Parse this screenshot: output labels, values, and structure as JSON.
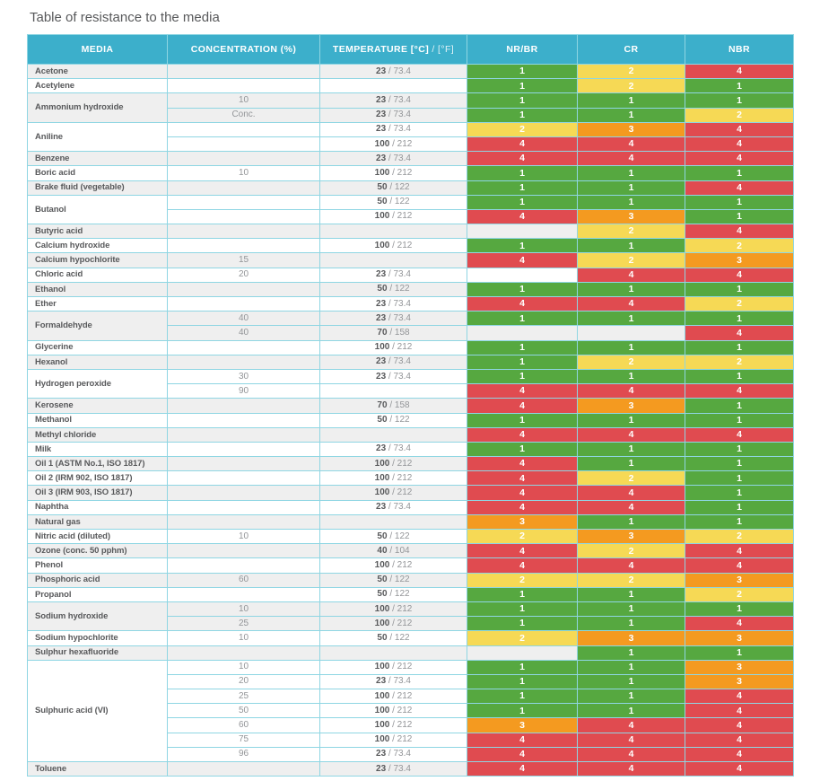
{
  "title": "Table of resistance to the media",
  "colors": {
    "header_teal": "#3cafcb",
    "border_teal": "#8fd6e3",
    "stripe_gray": "#efefef",
    "rating_1_green": "#56a840",
    "rating_2_yellow": "#f6d955",
    "rating_3_orange": "#f49a20",
    "rating_4_red": "#e04b50",
    "text_dark": "#58595b",
    "text_gray": "#939598"
  },
  "table": {
    "columns": {
      "media": "MEDIA",
      "concentration": "CONCENTRATION (%)",
      "temperature_bold": "TEMPERATURE [°C]",
      "temperature_light": " / [°F]",
      "nr_br": "NR/BR",
      "cr": "CR",
      "nbr": "NBR"
    },
    "rating_columns": [
      "nrbr",
      "cr",
      "nbr"
    ],
    "groups": [
      {
        "media": "Acetone",
        "rows": [
          {
            "concentration": "",
            "temp_c": "23",
            "temp_f": "73.4",
            "ratings": [
              1,
              2,
              4
            ]
          }
        ]
      },
      {
        "media": "Acetylene",
        "rows": [
          {
            "concentration": "",
            "temp_c": "",
            "temp_f": "",
            "ratings": [
              1,
              2,
              1
            ]
          }
        ]
      },
      {
        "media": "Ammonium hydroxide",
        "rows": [
          {
            "concentration": "10",
            "temp_c": "23",
            "temp_f": "73.4",
            "ratings": [
              1,
              1,
              1
            ]
          },
          {
            "concentration": "Conc.",
            "temp_c": "23",
            "temp_f": "73.4",
            "ratings": [
              1,
              1,
              2
            ]
          }
        ]
      },
      {
        "media": "Aniline",
        "rows": [
          {
            "concentration": "",
            "temp_c": "23",
            "temp_f": "73.4",
            "ratings": [
              2,
              3,
              4
            ]
          },
          {
            "concentration": "",
            "temp_c": "100",
            "temp_f": "212",
            "ratings": [
              4,
              4,
              4
            ]
          }
        ]
      },
      {
        "media": "Benzene",
        "rows": [
          {
            "concentration": "",
            "temp_c": "23",
            "temp_f": "73.4",
            "ratings": [
              4,
              4,
              4
            ]
          }
        ]
      },
      {
        "media": "Boric acid",
        "rows": [
          {
            "concentration": "10",
            "temp_c": "100",
            "temp_f": "212",
            "ratings": [
              1,
              1,
              1
            ]
          }
        ]
      },
      {
        "media": "Brake fluid (vegetable)",
        "rows": [
          {
            "concentration": "",
            "temp_c": "50",
            "temp_f": "122",
            "ratings": [
              1,
              1,
              4
            ]
          }
        ]
      },
      {
        "media": "Butanol",
        "rows": [
          {
            "concentration": "",
            "temp_c": "50",
            "temp_f": "122",
            "ratings": [
              1,
              1,
              1
            ]
          },
          {
            "concentration": "",
            "temp_c": "100",
            "temp_f": "212",
            "ratings": [
              4,
              3,
              1
            ]
          }
        ]
      },
      {
        "media": "Butyric acid",
        "rows": [
          {
            "concentration": "",
            "temp_c": "",
            "temp_f": "",
            "ratings": [
              null,
              2,
              4
            ]
          }
        ]
      },
      {
        "media": "Calcium hydroxide",
        "rows": [
          {
            "concentration": "",
            "temp_c": "100",
            "temp_f": "212",
            "ratings": [
              1,
              1,
              2
            ]
          }
        ]
      },
      {
        "media": "Calcium hypochlorite",
        "rows": [
          {
            "concentration": "15",
            "temp_c": "",
            "temp_f": "",
            "ratings": [
              4,
              2,
              3
            ]
          }
        ]
      },
      {
        "media": "Chloric acid",
        "rows": [
          {
            "concentration": "20",
            "temp_c": "23",
            "temp_f": "73.4",
            "ratings": [
              null,
              4,
              4
            ]
          }
        ]
      },
      {
        "media": "Ethanol",
        "rows": [
          {
            "concentration": "",
            "temp_c": "50",
            "temp_f": "122",
            "ratings": [
              1,
              1,
              1
            ]
          }
        ]
      },
      {
        "media": "Ether",
        "rows": [
          {
            "concentration": "",
            "temp_c": "23",
            "temp_f": "73.4",
            "ratings": [
              4,
              4,
              2
            ]
          }
        ]
      },
      {
        "media": "Formaldehyde",
        "rows": [
          {
            "concentration": "40",
            "temp_c": "23",
            "temp_f": "73.4",
            "ratings": [
              1,
              1,
              1
            ]
          },
          {
            "concentration": "40",
            "temp_c": "70",
            "temp_f": "158",
            "ratings": [
              null,
              null,
              4
            ]
          }
        ]
      },
      {
        "media": "Glycerine",
        "rows": [
          {
            "concentration": "",
            "temp_c": "100",
            "temp_f": "212",
            "ratings": [
              1,
              1,
              1
            ]
          }
        ]
      },
      {
        "media": "Hexanol",
        "rows": [
          {
            "concentration": "",
            "temp_c": "23",
            "temp_f": "73.4",
            "ratings": [
              1,
              2,
              2
            ]
          }
        ]
      },
      {
        "media": "Hydrogen peroxide",
        "rows": [
          {
            "concentration": "30",
            "temp_c": "23",
            "temp_f": "73.4",
            "ratings": [
              1,
              1,
              1
            ]
          },
          {
            "concentration": "90",
            "temp_c": "",
            "temp_f": "",
            "ratings": [
              4,
              4,
              4
            ]
          }
        ]
      },
      {
        "media": "Kerosene",
        "rows": [
          {
            "concentration": "",
            "temp_c": "70",
            "temp_f": "158",
            "ratings": [
              4,
              3,
              1
            ]
          }
        ]
      },
      {
        "media": "Methanol",
        "rows": [
          {
            "concentration": "",
            "temp_c": "50",
            "temp_f": "122",
            "ratings": [
              1,
              1,
              1
            ]
          }
        ]
      },
      {
        "media": "Methyl chloride",
        "rows": [
          {
            "concentration": "",
            "temp_c": "",
            "temp_f": "",
            "ratings": [
              4,
              4,
              4
            ]
          }
        ]
      },
      {
        "media": "Milk",
        "rows": [
          {
            "concentration": "",
            "temp_c": "23",
            "temp_f": "73.4",
            "ratings": [
              1,
              1,
              1
            ]
          }
        ]
      },
      {
        "media": "Oil 1 (ASTM No.1, ISO 1817)",
        "rows": [
          {
            "concentration": "",
            "temp_c": "100",
            "temp_f": "212",
            "ratings": [
              4,
              1,
              1
            ]
          }
        ]
      },
      {
        "media": "Oil 2 (IRM 902, ISO 1817)",
        "rows": [
          {
            "concentration": "",
            "temp_c": "100",
            "temp_f": "212",
            "ratings": [
              4,
              2,
              1
            ]
          }
        ]
      },
      {
        "media": "Oil 3 (IRM 903, ISO 1817)",
        "rows": [
          {
            "concentration": "",
            "temp_c": "100",
            "temp_f": "212",
            "ratings": [
              4,
              4,
              1
            ]
          }
        ]
      },
      {
        "media": "Naphtha",
        "rows": [
          {
            "concentration": "",
            "temp_c": "23",
            "temp_f": "73.4",
            "ratings": [
              4,
              4,
              1
            ]
          }
        ]
      },
      {
        "media": "Natural gas",
        "rows": [
          {
            "concentration": "",
            "temp_c": "",
            "temp_f": "",
            "ratings": [
              3,
              1,
              1
            ]
          }
        ]
      },
      {
        "media": "Nitric acid (diluted)",
        "rows": [
          {
            "concentration": "10",
            "temp_c": "50",
            "temp_f": "122",
            "ratings": [
              2,
              3,
              2
            ]
          }
        ]
      },
      {
        "media": "Ozone (conc. 50 pphm)",
        "rows": [
          {
            "concentration": "",
            "temp_c": "40",
            "temp_f": "104",
            "ratings": [
              4,
              2,
              4
            ]
          }
        ]
      },
      {
        "media": "Phenol",
        "rows": [
          {
            "concentration": "",
            "temp_c": "100",
            "temp_f": "212",
            "ratings": [
              4,
              4,
              4
            ]
          }
        ]
      },
      {
        "media": "Phosphoric acid",
        "rows": [
          {
            "concentration": "60",
            "temp_c": "50",
            "temp_f": "122",
            "ratings": [
              2,
              2,
              3
            ]
          }
        ]
      },
      {
        "media": "Propanol",
        "rows": [
          {
            "concentration": "",
            "temp_c": "50",
            "temp_f": "122",
            "ratings": [
              1,
              1,
              2
            ]
          }
        ]
      },
      {
        "media": "Sodium hydroxide",
        "rows": [
          {
            "concentration": "10",
            "temp_c": "100",
            "temp_f": "212",
            "ratings": [
              1,
              1,
              1
            ]
          },
          {
            "concentration": "25",
            "temp_c": "100",
            "temp_f": "212",
            "ratings": [
              1,
              1,
              4
            ]
          }
        ]
      },
      {
        "media": "Sodium hypochlorite",
        "rows": [
          {
            "concentration": "10",
            "temp_c": "50",
            "temp_f": "122",
            "ratings": [
              2,
              3,
              3
            ]
          }
        ]
      },
      {
        "media": "Sulphur hexafluoride",
        "rows": [
          {
            "concentration": "",
            "temp_c": "",
            "temp_f": "",
            "ratings": [
              null,
              1,
              1
            ]
          }
        ]
      },
      {
        "media": "Sulphuric acid (VI)",
        "rows": [
          {
            "concentration": "10",
            "temp_c": "100",
            "temp_f": "212",
            "ratings": [
              1,
              1,
              3
            ]
          },
          {
            "concentration": "20",
            "temp_c": "23",
            "temp_f": "73.4",
            "ratings": [
              1,
              1,
              3
            ]
          },
          {
            "concentration": "25",
            "temp_c": "100",
            "temp_f": "212",
            "ratings": [
              1,
              1,
              4
            ]
          },
          {
            "concentration": "50",
            "temp_c": "100",
            "temp_f": "212",
            "ratings": [
              1,
              1,
              4
            ]
          },
          {
            "concentration": "60",
            "temp_c": "100",
            "temp_f": "212",
            "ratings": [
              3,
              4,
              4
            ]
          },
          {
            "concentration": "75",
            "temp_c": "100",
            "temp_f": "212",
            "ratings": [
              4,
              4,
              4
            ]
          },
          {
            "concentration": "96",
            "temp_c": "23",
            "temp_f": "73.4",
            "ratings": [
              4,
              4,
              4
            ]
          }
        ]
      },
      {
        "media": "Toluene",
        "rows": [
          {
            "concentration": "",
            "temp_c": "23",
            "temp_f": "73.4",
            "ratings": [
              4,
              4,
              4
            ]
          }
        ]
      }
    ]
  }
}
